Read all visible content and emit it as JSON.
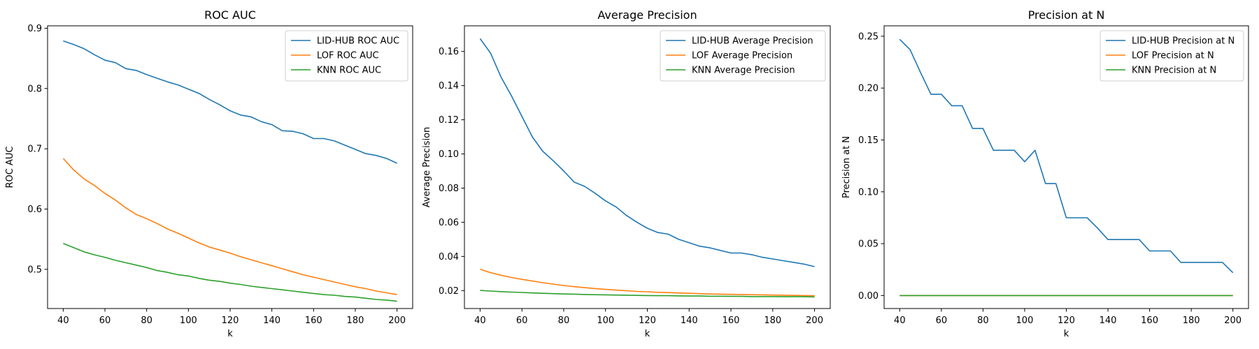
{
  "chart_data": [
    {
      "type": "line",
      "title": "ROC AUC",
      "xlabel": "k",
      "ylabel": "ROC AUC",
      "xlim": [
        32.5,
        207.5
      ],
      "ylim": [
        0.435,
        0.904
      ],
      "xticks": [
        40,
        60,
        80,
        100,
        120,
        140,
        160,
        180,
        200
      ],
      "xtick_labels": [
        "40",
        "60",
        "80",
        "100",
        "120",
        "140",
        "160",
        "180",
        "200"
      ],
      "yticks": [
        0.5,
        0.6,
        0.7,
        0.8,
        0.9
      ],
      "ytick_labels": [
        "0.5",
        "0.6",
        "0.7",
        "0.8",
        "0.9"
      ],
      "legend_position": "top-right",
      "x": [
        40,
        45,
        50,
        55,
        60,
        65,
        70,
        75,
        80,
        85,
        90,
        95,
        100,
        105,
        110,
        115,
        120,
        125,
        130,
        135,
        140,
        145,
        150,
        155,
        160,
        165,
        170,
        175,
        180,
        185,
        190,
        195,
        200
      ],
      "series": [
        {
          "name": "LID-HUB ROC AUC",
          "color": "#1f77b4",
          "values": [
            0.879,
            0.873,
            0.866,
            0.856,
            0.847,
            0.843,
            0.833,
            0.83,
            0.823,
            0.817,
            0.811,
            0.806,
            0.799,
            0.792,
            0.782,
            0.773,
            0.763,
            0.756,
            0.753,
            0.745,
            0.74,
            0.73,
            0.729,
            0.725,
            0.717,
            0.717,
            0.713,
            0.706,
            0.699,
            0.692,
            0.689,
            0.684,
            0.676
          ]
        },
        {
          "name": "LOF ROC AUC",
          "color": "#ff7f0e",
          "values": [
            0.684,
            0.665,
            0.65,
            0.639,
            0.626,
            0.615,
            0.602,
            0.591,
            0.584,
            0.576,
            0.567,
            0.56,
            0.552,
            0.544,
            0.537,
            0.532,
            0.527,
            0.521,
            0.516,
            0.511,
            0.506,
            0.501,
            0.496,
            0.491,
            0.487,
            0.483,
            0.479,
            0.475,
            0.471,
            0.468,
            0.464,
            0.461,
            0.458
          ]
        },
        {
          "name": "KNN ROC AUC",
          "color": "#2ca02c",
          "values": [
            0.543,
            0.536,
            0.529,
            0.524,
            0.52,
            0.515,
            0.511,
            0.507,
            0.503,
            0.498,
            0.495,
            0.491,
            0.489,
            0.485,
            0.482,
            0.48,
            0.477,
            0.475,
            0.472,
            0.47,
            0.468,
            0.466,
            0.464,
            0.462,
            0.46,
            0.458,
            0.457,
            0.455,
            0.454,
            0.452,
            0.45,
            0.449,
            0.447
          ]
        }
      ]
    },
    {
      "type": "line",
      "title": "Average Precision",
      "xlabel": "k",
      "ylabel": "Average Precision",
      "xlim": [
        32.5,
        207.5
      ],
      "ylim": [
        0.0095,
        0.175
      ],
      "xticks": [
        40,
        60,
        80,
        100,
        120,
        140,
        160,
        180,
        200
      ],
      "xtick_labels": [
        "40",
        "60",
        "80",
        "100",
        "120",
        "140",
        "160",
        "180",
        "200"
      ],
      "yticks": [
        0.02,
        0.04,
        0.06,
        0.08,
        0.1,
        0.12,
        0.14,
        0.16
      ],
      "ytick_labels": [
        "0.02",
        "0.04",
        "0.06",
        "0.08",
        "0.10",
        "0.12",
        "0.14",
        "0.16"
      ],
      "legend_position": "top-right",
      "x": [
        40,
        45,
        50,
        55,
        60,
        65,
        70,
        75,
        80,
        85,
        90,
        95,
        100,
        105,
        110,
        115,
        120,
        125,
        130,
        135,
        140,
        145,
        150,
        155,
        160,
        165,
        170,
        175,
        180,
        185,
        190,
        195,
        200
      ],
      "series": [
        {
          "name": "LID-HUB Average Precision",
          "color": "#1f77b4",
          "values": [
            0.1675,
            0.159,
            0.145,
            0.134,
            0.122,
            0.11,
            0.1015,
            0.096,
            0.09,
            0.0835,
            0.081,
            0.077,
            0.0725,
            0.069,
            0.064,
            0.06,
            0.0565,
            0.054,
            0.053,
            0.05,
            0.048,
            0.046,
            0.045,
            0.0435,
            0.042,
            0.042,
            0.041,
            0.0395,
            0.0385,
            0.0375,
            0.0365,
            0.0355,
            0.034
          ]
        },
        {
          "name": "LOF Average Precision",
          "color": "#ff7f0e",
          "values": [
            0.0325,
            0.0305,
            0.029,
            0.0277,
            0.0266,
            0.0256,
            0.0246,
            0.0238,
            0.023,
            0.0223,
            0.0217,
            0.0212,
            0.0207,
            0.0203,
            0.0199,
            0.0195,
            0.0193,
            0.019,
            0.0188,
            0.0186,
            0.0184,
            0.0182,
            0.018,
            0.0179,
            0.0178,
            0.0177,
            0.0176,
            0.0175,
            0.0174,
            0.0173,
            0.0172,
            0.0171,
            0.017
          ]
        },
        {
          "name": "KNN Average Precision",
          "color": "#2ca02c",
          "values": [
            0.0201,
            0.0197,
            0.0194,
            0.0191,
            0.0189,
            0.0186,
            0.0184,
            0.0182,
            0.018,
            0.0179,
            0.0177,
            0.0176,
            0.0175,
            0.0174,
            0.0173,
            0.0172,
            0.0171,
            0.017,
            0.017,
            0.0169,
            0.0168,
            0.0168,
            0.0167,
            0.0167,
            0.0166,
            0.0166,
            0.0165,
            0.0165,
            0.0165,
            0.0164,
            0.0164,
            0.0164,
            0.0163
          ]
        }
      ]
    },
    {
      "type": "line",
      "title": "Precision at N",
      "xlabel": "k",
      "ylabel": "Precision at N",
      "xlim": [
        32.5,
        207.5
      ],
      "ylim": [
        -0.0125,
        0.26
      ],
      "xticks": [
        40,
        60,
        80,
        100,
        120,
        140,
        160,
        180,
        200
      ],
      "xtick_labels": [
        "40",
        "60",
        "80",
        "100",
        "120",
        "140",
        "160",
        "180",
        "200"
      ],
      "yticks": [
        0.0,
        0.05,
        0.1,
        0.15,
        0.2,
        0.25
      ],
      "ytick_labels": [
        "0.00",
        "0.05",
        "0.10",
        "0.15",
        "0.20",
        "0.25"
      ],
      "legend_position": "top-right",
      "x": [
        40,
        45,
        50,
        55,
        60,
        65,
        70,
        75,
        80,
        85,
        90,
        95,
        100,
        105,
        110,
        115,
        120,
        125,
        130,
        135,
        140,
        145,
        150,
        155,
        160,
        165,
        170,
        175,
        180,
        185,
        190,
        195,
        200
      ],
      "series": [
        {
          "name": "LID-HUB Precision at N",
          "color": "#1f77b4",
          "values": [
            0.247,
            0.237,
            0.215,
            0.194,
            0.194,
            0.183,
            0.183,
            0.161,
            0.161,
            0.14,
            0.14,
            0.14,
            0.129,
            0.14,
            0.108,
            0.108,
            0.075,
            0.075,
            0.075,
            0.065,
            0.054,
            0.054,
            0.054,
            0.054,
            0.043,
            0.043,
            0.043,
            0.032,
            0.032,
            0.032,
            0.032,
            0.032,
            0.022
          ]
        },
        {
          "name": "LOF Precision at N",
          "color": "#ff7f0e",
          "values": [
            0,
            0,
            0,
            0,
            0,
            0,
            0,
            0,
            0,
            0,
            0,
            0,
            0,
            0,
            0,
            0,
            0,
            0,
            0,
            0,
            0,
            0,
            0,
            0,
            0,
            0,
            0,
            0,
            0,
            0,
            0,
            0,
            0
          ]
        },
        {
          "name": "KNN Precision at N",
          "color": "#2ca02c",
          "values": [
            0,
            0,
            0,
            0,
            0,
            0,
            0,
            0,
            0,
            0,
            0,
            0,
            0,
            0,
            0,
            0,
            0,
            0,
            0,
            0,
            0,
            0,
            0,
            0,
            0,
            0,
            0,
            0,
            0,
            0,
            0,
            0,
            0
          ]
        }
      ]
    }
  ]
}
